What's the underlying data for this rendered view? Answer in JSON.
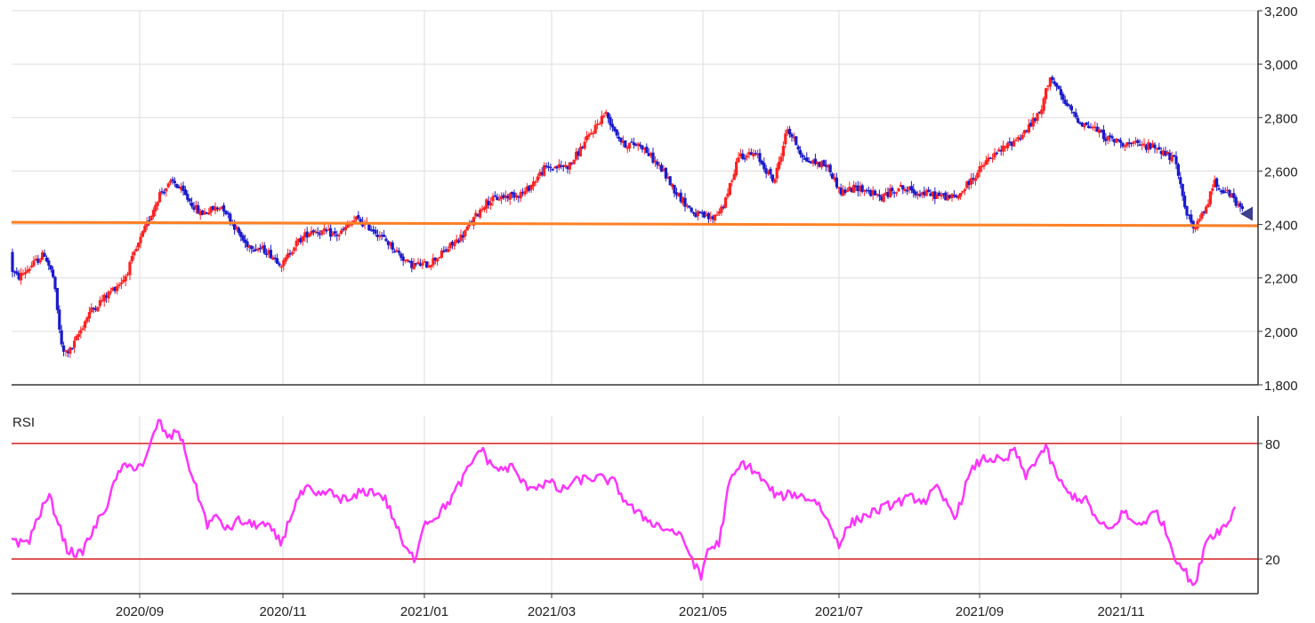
{
  "chart_data": [
    {
      "type": "candlestick",
      "title": "",
      "ylim": [
        1800,
        3200
      ],
      "y_ticks": [
        "3,200",
        "3,000",
        "2,800",
        "2,600",
        "2,400",
        "2,200",
        "2,000",
        "1,800"
      ],
      "y_tick_values": [
        3200,
        3000,
        2800,
        2600,
        2400,
        2200,
        2000,
        1800
      ],
      "grid": true,
      "support_line": 2395,
      "last_price": 2440,
      "colors": {
        "up": "#ff2020",
        "down": "#1a1acc",
        "support": "#ff7f24",
        "marker": "#3c3f8c",
        "grid": "#dddddd"
      },
      "path_points": [
        [
          0,
          2295
        ],
        [
          20,
          2200
        ],
        [
          50,
          2290
        ],
        [
          60,
          2200
        ],
        [
          70,
          1920
        ],
        [
          80,
          1930
        ],
        [
          100,
          2070
        ],
        [
          140,
          2200
        ],
        [
          160,
          2360
        ],
        [
          180,
          2520
        ],
        [
          195,
          2560
        ],
        [
          225,
          2440
        ],
        [
          250,
          2470
        ],
        [
          275,
          2330
        ],
        [
          300,
          2300
        ],
        [
          318,
          2250
        ],
        [
          330,
          2320
        ],
        [
          350,
          2380
        ],
        [
          380,
          2360
        ],
        [
          400,
          2420
        ],
        [
          420,
          2380
        ],
        [
          440,
          2320
        ],
        [
          460,
          2250
        ],
        [
          480,
          2250
        ],
        [
          500,
          2300
        ],
        [
          520,
          2360
        ],
        [
          545,
          2480
        ],
        [
          560,
          2500
        ],
        [
          590,
          2520
        ],
        [
          612,
          2610
        ],
        [
          640,
          2620
        ],
        [
          660,
          2720
        ],
        [
          680,
          2820
        ],
        [
          700,
          2700
        ],
        [
          720,
          2700
        ],
        [
          745,
          2600
        ],
        [
          760,
          2520
        ],
        [
          780,
          2440
        ],
        [
          800,
          2420
        ],
        [
          815,
          2480
        ],
        [
          830,
          2660
        ],
        [
          850,
          2660
        ],
        [
          870,
          2560
        ],
        [
          885,
          2760
        ],
        [
          905,
          2640
        ],
        [
          930,
          2620
        ],
        [
          945,
          2520
        ],
        [
          965,
          2540
        ],
        [
          990,
          2500
        ],
        [
          1010,
          2540
        ],
        [
          1030,
          2520
        ],
        [
          1050,
          2510
        ],
        [
          1075,
          2500
        ],
        [
          1090,
          2560
        ],
        [
          1110,
          2640
        ],
        [
          1130,
          2690
        ],
        [
          1150,
          2740
        ],
        [
          1170,
          2820
        ],
        [
          1180,
          2960
        ],
        [
          1195,
          2860
        ],
        [
          1215,
          2780
        ],
        [
          1230,
          2760
        ],
        [
          1245,
          2720
        ],
        [
          1270,
          2700
        ],
        [
          1300,
          2690
        ],
        [
          1320,
          2640
        ],
        [
          1335,
          2430
        ],
        [
          1343,
          2380
        ],
        [
          1355,
          2460
        ],
        [
          1365,
          2560
        ],
        [
          1385,
          2500
        ],
        [
          1398,
          2440
        ]
      ]
    },
    {
      "type": "line",
      "title": "RSI",
      "ylim": [
        0,
        100
      ],
      "y_ticks": [
        "80",
        "20"
      ],
      "reference_lines": [
        80,
        20
      ],
      "colors": {
        "line": "#ff33ff",
        "reference": "#d42020"
      },
      "path_points": [
        [
          13,
          32
        ],
        [
          22,
          28
        ],
        [
          33,
          30
        ],
        [
          43,
          42
        ],
        [
          55,
          53
        ],
        [
          65,
          40
        ],
        [
          75,
          25
        ],
        [
          90,
          22
        ],
        [
          105,
          35
        ],
        [
          120,
          48
        ],
        [
          135,
          67
        ],
        [
          150,
          68
        ],
        [
          163,
          70
        ],
        [
          178,
          92
        ],
        [
          190,
          82
        ],
        [
          200,
          88
        ],
        [
          218,
          60
        ],
        [
          233,
          38
        ],
        [
          245,
          42
        ],
        [
          255,
          35
        ],
        [
          268,
          40
        ],
        [
          280,
          38
        ],
        [
          295,
          38
        ],
        [
          305,
          35
        ],
        [
          316,
          28
        ],
        [
          325,
          40
        ],
        [
          333,
          50
        ],
        [
          345,
          57
        ],
        [
          355,
          52
        ],
        [
          368,
          55
        ],
        [
          380,
          52
        ],
        [
          395,
          50
        ],
        [
          405,
          55
        ],
        [
          420,
          55
        ],
        [
          432,
          52
        ],
        [
          445,
          38
        ],
        [
          455,
          25
        ],
        [
          467,
          20
        ],
        [
          475,
          38
        ],
        [
          490,
          42
        ],
        [
          505,
          50
        ],
        [
          518,
          60
        ],
        [
          528,
          68
        ],
        [
          540,
          78
        ],
        [
          550,
          70
        ],
        [
          562,
          66
        ],
        [
          575,
          68
        ],
        [
          590,
          58
        ],
        [
          605,
          58
        ],
        [
          618,
          60
        ],
        [
          630,
          55
        ],
        [
          645,
          60
        ],
        [
          660,
          62
        ],
        [
          675,
          62
        ],
        [
          690,
          60
        ],
        [
          700,
          52
        ],
        [
          715,
          44
        ],
        [
          730,
          40
        ],
        [
          745,
          36
        ],
        [
          760,
          34
        ],
        [
          770,
          28
        ],
        [
          780,
          18
        ],
        [
          788,
          10
        ],
        [
          795,
          25
        ],
        [
          808,
          28
        ],
        [
          820,
          60
        ],
        [
          835,
          70
        ],
        [
          850,
          65
        ],
        [
          862,
          58
        ],
        [
          875,
          52
        ],
        [
          890,
          54
        ],
        [
          905,
          52
        ],
        [
          918,
          50
        ],
        [
          930,
          40
        ],
        [
          943,
          28
        ],
        [
          955,
          38
        ],
        [
          970,
          42
        ],
        [
          985,
          45
        ],
        [
          1000,
          48
        ],
        [
          1012,
          50
        ],
        [
          1025,
          52
        ],
        [
          1040,
          50
        ],
        [
          1052,
          57
        ],
        [
          1062,
          50
        ],
        [
          1075,
          42
        ],
        [
          1085,
          58
        ],
        [
          1095,
          68
        ],
        [
          1105,
          72
        ],
        [
          1118,
          72
        ],
        [
          1130,
          70
        ],
        [
          1140,
          78
        ],
        [
          1152,
          62
        ],
        [
          1162,
          70
        ],
        [
          1175,
          78
        ],
        [
          1185,
          66
        ],
        [
          1198,
          55
        ],
        [
          1210,
          52
        ],
        [
          1222,
          50
        ],
        [
          1235,
          38
        ],
        [
          1250,
          35
        ],
        [
          1262,
          45
        ],
        [
          1275,
          38
        ],
        [
          1288,
          40
        ],
        [
          1300,
          45
        ],
        [
          1310,
          35
        ],
        [
          1320,
          22
        ],
        [
          1330,
          15
        ],
        [
          1343,
          5
        ],
        [
          1355,
          30
        ],
        [
          1370,
          35
        ],
        [
          1380,
          38
        ],
        [
          1388,
          48
        ]
      ]
    }
  ],
  "x_axis": {
    "labels": [
      "2020/09",
      "2020/11",
      "2021/01",
      "2021/03",
      "2021/05",
      "2021/07",
      "2021/09",
      "2021/11"
    ],
    "positions": [
      157,
      318,
      477,
      620,
      790,
      943,
      1101,
      1260
    ]
  }
}
